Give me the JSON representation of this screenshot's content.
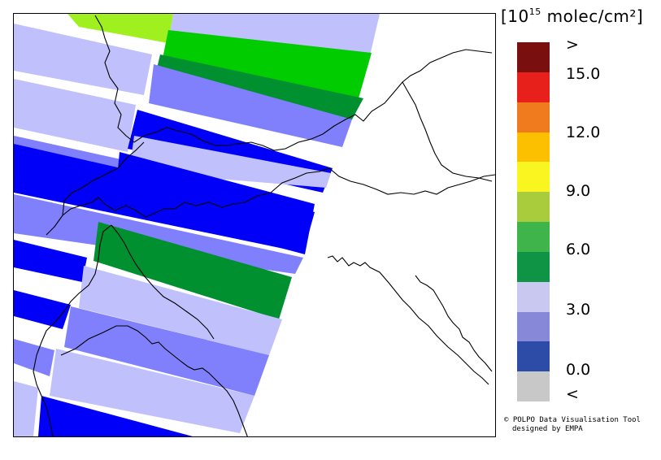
{
  "legend": {
    "unit_prefix": "[10",
    "unit_exponent": "15",
    "unit_suffix": " molec/cm²]",
    "colors": [
      "#7a0f0f",
      "#e8201c",
      "#f07a1e",
      "#fcc000",
      "#f8f520",
      "#a8cc3c",
      "#3eb44a",
      "#0e9444",
      "#c8c8f0",
      "#8888d8",
      "#2c4ca8",
      "#c8c8c8"
    ],
    "labels": [
      ">",
      "15.0",
      "12.0",
      "9.0",
      "6.0",
      "3.0",
      "0.0",
      "<"
    ]
  },
  "credit": {
    "line1": "© POLPO Data Visualisation Tool",
    "line2": "designed by EMPA"
  },
  "swath_colors": {
    "light_lavender": "#c0c0fc",
    "medium_blue": "#8080fc",
    "deep_blue": "#0000f8",
    "dark_green": "#009030",
    "bright_green": "#00cc00",
    "yellow_green": "#a0f020"
  }
}
